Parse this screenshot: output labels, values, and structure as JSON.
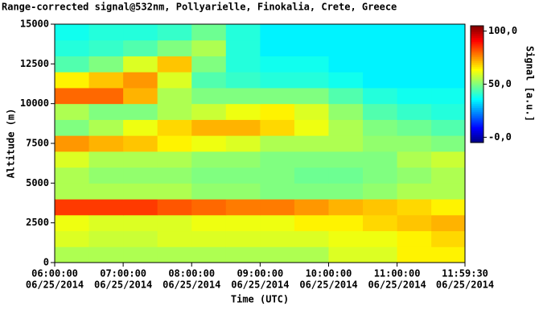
{
  "chart_data": {
    "type": "heatmap",
    "title": "Range-corrected signal@532nm, Pollyarielle, Finokalia, Crete, Greece",
    "x_label": "Time (UTC)",
    "y_label": "Altitude (m)",
    "colorbar_label": "Signal [a.u.]",
    "xlim": [
      6,
      11.9917
    ],
    "ylim": [
      0,
      15000
    ],
    "xticks": [
      {
        "value": 6,
        "label": [
          "06:00:00",
          "06/25/2014"
        ]
      },
      {
        "value": 7,
        "label": [
          "07:00:00",
          "06/25/2014"
        ]
      },
      {
        "value": 8,
        "label": [
          "08:00:00",
          "06/25/2014"
        ]
      },
      {
        "value": 9,
        "label": [
          "09:00:00",
          "06/25/2014"
        ]
      },
      {
        "value": 10,
        "label": [
          "10:00:00",
          "06/25/2014"
        ]
      },
      {
        "value": 11,
        "label": [
          "11:00:00",
          "06/25/2014"
        ]
      },
      {
        "value": 11.9917,
        "label": [
          "11:59:30",
          "06/25/2014"
        ]
      }
    ],
    "yticks": [
      0,
      2500,
      5000,
      7500,
      10000,
      12500,
      15000
    ],
    "clim": [
      -5,
      105
    ],
    "cticks": [
      {
        "value": 0,
        "label": "-0,0"
      },
      {
        "value": 50,
        "label": "50,0"
      },
      {
        "value": 100,
        "label": "100,0"
      }
    ],
    "x": [
      6.25,
      6.75,
      7.25,
      7.75,
      8.25,
      8.75,
      9.25,
      9.75,
      10.25,
      10.75,
      11.25,
      11.75
    ],
    "y": [
      500,
      1500,
      2500,
      3500,
      4500,
      5500,
      6500,
      7500,
      8500,
      9500,
      10500,
      11500,
      12500,
      13500,
      14500
    ],
    "z": [
      [
        55,
        55,
        55,
        55,
        55,
        55,
        55,
        55,
        60,
        60,
        65,
        65
      ],
      [
        60,
        58,
        58,
        60,
        60,
        60,
        60,
        60,
        62,
        62,
        65,
        68
      ],
      [
        62,
        60,
        60,
        60,
        62,
        62,
        62,
        65,
        65,
        68,
        70,
        72
      ],
      [
        85,
        85,
        85,
        82,
        80,
        78,
        78,
        75,
        72,
        70,
        68,
        65
      ],
      [
        55,
        55,
        55,
        55,
        52,
        52,
        50,
        50,
        50,
        52,
        55,
        55
      ],
      [
        55,
        52,
        52,
        52,
        50,
        50,
        50,
        48,
        48,
        50,
        52,
        55
      ],
      [
        60,
        55,
        55,
        55,
        52,
        52,
        50,
        50,
        50,
        50,
        55,
        58
      ],
      [
        75,
        72,
        70,
        65,
        62,
        60,
        55,
        55,
        55,
        52,
        52,
        50
      ],
      [
        50,
        55,
        62,
        68,
        72,
        72,
        68,
        62,
        55,
        50,
        48,
        45
      ],
      [
        55,
        50,
        50,
        55,
        58,
        62,
        65,
        60,
        52,
        45,
        42,
        40
      ],
      [
        80,
        80,
        72,
        55,
        50,
        50,
        50,
        50,
        45,
        40,
        38,
        38
      ],
      [
        65,
        70,
        75,
        60,
        45,
        42,
        40,
        40,
        38,
        35,
        35,
        35
      ],
      [
        45,
        50,
        60,
        70,
        50,
        40,
        38,
        38,
        35,
        35,
        35,
        35
      ],
      [
        40,
        42,
        45,
        50,
        55,
        40,
        35,
        35,
        35,
        35,
        35,
        35
      ],
      [
        38,
        40,
        40,
        42,
        48,
        40,
        35,
        35,
        35,
        35,
        35,
        35
      ]
    ]
  }
}
